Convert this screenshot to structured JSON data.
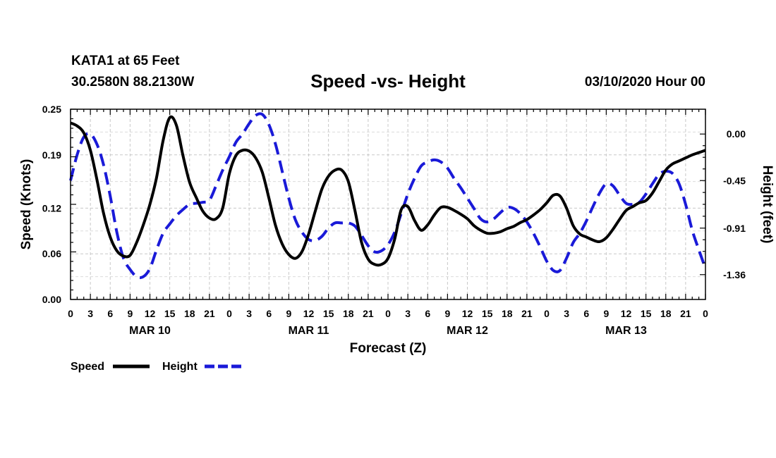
{
  "header": {
    "station": "KATA1 at 65 Feet",
    "coords": "30.2580N 88.2130W",
    "title": "Speed -vs- Height",
    "run": "03/10/2020 Hour 00"
  },
  "chart_data": {
    "type": "line",
    "title": "Speed -vs- Height",
    "xlabel": "Forecast (Z)",
    "ylabel": "Speed (Knots)",
    "y2label": "Height (feet)",
    "x_unit": "hours since 03/10/2020 00Z",
    "xlim": [
      0,
      96
    ],
    "ylim": [
      0,
      0.25
    ],
    "y2lim": [
      -1.6,
      0.24
    ],
    "grid": true,
    "legend_position": "bottom-left",
    "x_ticks": [
      0,
      3,
      6,
      9,
      12,
      15,
      18,
      21,
      24,
      27,
      30,
      33,
      36,
      39,
      42,
      45,
      48,
      51,
      54,
      57,
      60,
      63,
      66,
      69,
      72,
      75,
      78,
      81,
      84,
      87,
      90,
      93,
      96
    ],
    "x_tick_labels": [
      "0",
      "3",
      "6",
      "9",
      "12",
      "15",
      "18",
      "21",
      "0",
      "3",
      "6",
      "9",
      "12",
      "15",
      "18",
      "21",
      "0",
      "3",
      "6",
      "9",
      "12",
      "15",
      "18",
      "21",
      "0",
      "3",
      "6",
      "9",
      "12",
      "15",
      "18",
      "21",
      "0"
    ],
    "day_labels": [
      {
        "label": "MAR 10",
        "hour": 12
      },
      {
        "label": "MAR 11",
        "hour": 36
      },
      {
        "label": "MAR 12",
        "hour": 60
      },
      {
        "label": "MAR 13",
        "hour": 84
      }
    ],
    "y_ticks": [
      0.0,
      0.06,
      0.12,
      0.19,
      0.25
    ],
    "y_tick_labels": [
      "0.00",
      "0.06",
      "0.12",
      "0.19",
      "0.25"
    ],
    "y2_ticks": [
      0.0,
      -0.45,
      -0.91,
      -1.36
    ],
    "y2_tick_labels": [
      "0.00",
      "-0.45",
      "-0.91",
      "-1.36"
    ],
    "series": [
      {
        "name": "Speed",
        "axis": "left",
        "color": "#000000",
        "style": "solid",
        "x": [
          0,
          1,
          2,
          3,
          4,
          5,
          6,
          7,
          8,
          9,
          10,
          11,
          12,
          13,
          14,
          15,
          16,
          17,
          18,
          19,
          20,
          21,
          22,
          23,
          24,
          25,
          26,
          27,
          28,
          29,
          30,
          31,
          32,
          33,
          34,
          35,
          36,
          37,
          38,
          39,
          40,
          41,
          42,
          43,
          44,
          45,
          46,
          47,
          48,
          49,
          50,
          51,
          52,
          53,
          54,
          55,
          56,
          57,
          58,
          59,
          60,
          61,
          62,
          63,
          64,
          65,
          66,
          67,
          68,
          69,
          70,
          71,
          72,
          73,
          74,
          75,
          76,
          77,
          78,
          79,
          80,
          81,
          82,
          83,
          84,
          85,
          86,
          87,
          88,
          89,
          90,
          91,
          92,
          93,
          94,
          95,
          96
        ],
        "values": [
          0.232,
          0.228,
          0.219,
          0.196,
          0.157,
          0.113,
          0.082,
          0.064,
          0.057,
          0.058,
          0.075,
          0.098,
          0.125,
          0.16,
          0.209,
          0.239,
          0.229,
          0.189,
          0.154,
          0.134,
          0.116,
          0.107,
          0.106,
          0.12,
          0.165,
          0.189,
          0.196,
          0.195,
          0.186,
          0.167,
          0.133,
          0.097,
          0.073,
          0.059,
          0.054,
          0.063,
          0.086,
          0.116,
          0.145,
          0.162,
          0.17,
          0.17,
          0.155,
          0.117,
          0.075,
          0.053,
          0.046,
          0.046,
          0.054,
          0.079,
          0.118,
          0.122,
          0.104,
          0.091,
          0.098,
          0.111,
          0.121,
          0.121,
          0.117,
          0.112,
          0.106,
          0.097,
          0.091,
          0.087,
          0.087,
          0.089,
          0.093,
          0.096,
          0.101,
          0.105,
          0.111,
          0.118,
          0.127,
          0.137,
          0.136,
          0.12,
          0.097,
          0.086,
          0.082,
          0.078,
          0.076,
          0.081,
          0.092,
          0.105,
          0.117,
          0.122,
          0.127,
          0.13,
          0.14,
          0.155,
          0.17,
          0.178,
          0.182,
          0.186,
          0.19,
          0.193,
          0.196
        ]
      },
      {
        "name": "Height",
        "axis": "right",
        "color": "#1a1ad8",
        "style": "dashed",
        "x": [
          0,
          1,
          2,
          3,
          4,
          5,
          6,
          7,
          8,
          9,
          10,
          11,
          12,
          13,
          14,
          15,
          16,
          17,
          18,
          19,
          20,
          21,
          22,
          23,
          24,
          25,
          26,
          27,
          28,
          29,
          30,
          31,
          32,
          33,
          34,
          35,
          36,
          37,
          38,
          39,
          40,
          41,
          42,
          43,
          44,
          45,
          46,
          47,
          48,
          49,
          50,
          51,
          52,
          53,
          54,
          55,
          56,
          57,
          58,
          59,
          60,
          61,
          62,
          63,
          64,
          65,
          66,
          67,
          68,
          69,
          70,
          71,
          72,
          73,
          74,
          75,
          76,
          77,
          78,
          79,
          80,
          81,
          82,
          83,
          84,
          85,
          86,
          87,
          88,
          89,
          90,
          91,
          92,
          93,
          94,
          95,
          96
        ],
        "values": [
          -0.45,
          -0.2,
          -0.03,
          0.0,
          -0.1,
          -0.3,
          -0.6,
          -0.95,
          -1.2,
          -1.31,
          -1.38,
          -1.38,
          -1.3,
          -1.12,
          -0.96,
          -0.87,
          -0.79,
          -0.73,
          -0.68,
          -0.67,
          -0.66,
          -0.64,
          -0.5,
          -0.35,
          -0.22,
          -0.08,
          0.0,
          0.1,
          0.18,
          0.19,
          0.09,
          -0.1,
          -0.36,
          -0.62,
          -0.83,
          -0.95,
          -1.02,
          -1.03,
          -0.99,
          -0.91,
          -0.86,
          -0.86,
          -0.86,
          -0.89,
          -0.98,
          -1.08,
          -1.14,
          -1.13,
          -1.07,
          -0.95,
          -0.77,
          -0.58,
          -0.43,
          -0.31,
          -0.27,
          -0.25,
          -0.27,
          -0.33,
          -0.43,
          -0.52,
          -0.62,
          -0.72,
          -0.82,
          -0.85,
          -0.82,
          -0.76,
          -0.71,
          -0.72,
          -0.77,
          -0.85,
          -0.96,
          -1.09,
          -1.23,
          -1.32,
          -1.32,
          -1.2,
          -1.05,
          -0.96,
          -0.84,
          -0.7,
          -0.57,
          -0.48,
          -0.5,
          -0.59,
          -0.67,
          -0.68,
          -0.66,
          -0.58,
          -0.48,
          -0.39,
          -0.36,
          -0.38,
          -0.48,
          -0.68,
          -0.93,
          -1.12,
          -1.3
        ]
      }
    ]
  }
}
